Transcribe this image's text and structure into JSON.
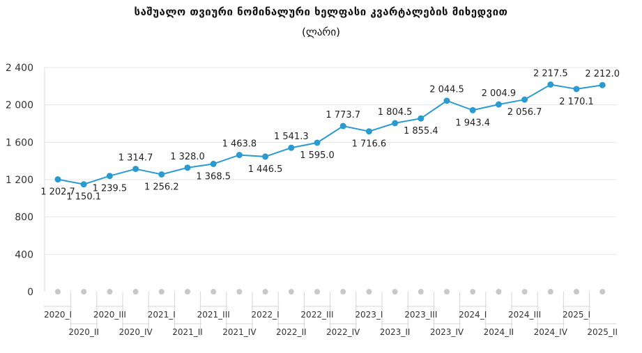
{
  "chart_data": {
    "type": "line",
    "title": "საშუალო თვიური ნომინალური ხელფასი კვარტალების მიხედვით",
    "subtitle": "(ლარი)",
    "x": [
      "2020_I",
      "2020_II",
      "2020_III",
      "2020_IV",
      "2021_I",
      "2021_II",
      "2021_III",
      "2021_IV",
      "2022_I",
      "2022_II",
      "2022_III",
      "2022_IV",
      "2023_I",
      "2023_II",
      "2023_III",
      "2023_IV",
      "2024_I",
      "2024_II",
      "2024_III",
      "2024_IV",
      "2025_I",
      "2025_II"
    ],
    "values": [
      1202.7,
      1150.1,
      1239.5,
      1314.7,
      1256.2,
      1328.0,
      1368.5,
      1463.8,
      1446.5,
      1541.3,
      1595.0,
      1773.7,
      1716.6,
      1804.5,
      1855.4,
      2044.5,
      1943.4,
      2004.9,
      2056.7,
      2217.5,
      2170.1,
      2212.0
    ],
    "value_labels": [
      "1 202.7",
      "1 150.1",
      "1 239.5",
      "1 314.7",
      "1 256.2",
      "1 328.0",
      "1 368.5",
      "1 463.8",
      "1 446.5",
      "1 541.3",
      "1 595.0",
      "1 773.7",
      "1 716.6",
      "1 804.5",
      "1 855.4",
      "2 044.5",
      "1 943.4",
      "2 004.9",
      "2 056.7",
      "2 217.5",
      "2 170.1",
      "2 212.0"
    ],
    "yticks": [
      0,
      400,
      800,
      1200,
      1600,
      2000,
      2400
    ],
    "ytick_labels": [
      "0",
      "400",
      "800",
      "1 200",
      "1 600",
      "2 000",
      "2 400"
    ],
    "ylim": [
      0,
      2400
    ],
    "grid": true,
    "legend": "none",
    "line_color": "#2a9ad0",
    "marker_color": "#2a9ad0",
    "axis_marker_color": "#c8c8c8",
    "grid_color": "#e6e6e6"
  }
}
